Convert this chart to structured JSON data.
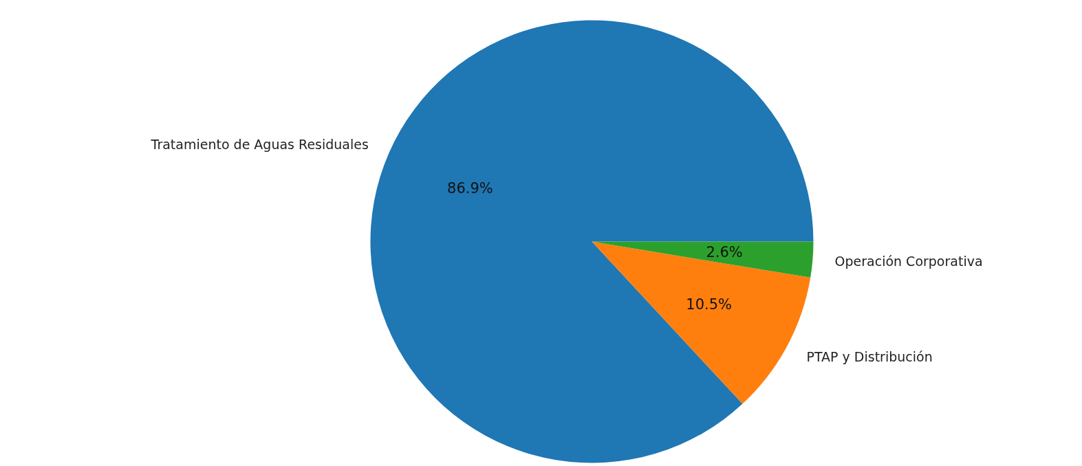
{
  "chart_data": {
    "type": "pie",
    "categories": [
      "Tratamiento de Aguas Residuales",
      "PTAP y Distribución",
      "Operación Corporativa"
    ],
    "values": [
      86.9,
      10.5,
      2.6
    ],
    "colors": [
      "#1f77b4",
      "#ff7f0e",
      "#2ca02c"
    ],
    "value_labels": [
      "86.9%",
      "10.5%",
      "2.6%"
    ]
  }
}
